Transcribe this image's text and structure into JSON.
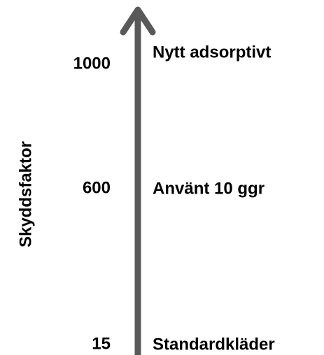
{
  "axis_label": "Skyddsfaktor",
  "levels": [
    {
      "value": 1000,
      "label": "Nytt adsorptivt"
    },
    {
      "value": 600,
      "label": "Använt 10 ggr"
    },
    {
      "value": 15,
      "label": "Standardkläder"
    }
  ]
}
